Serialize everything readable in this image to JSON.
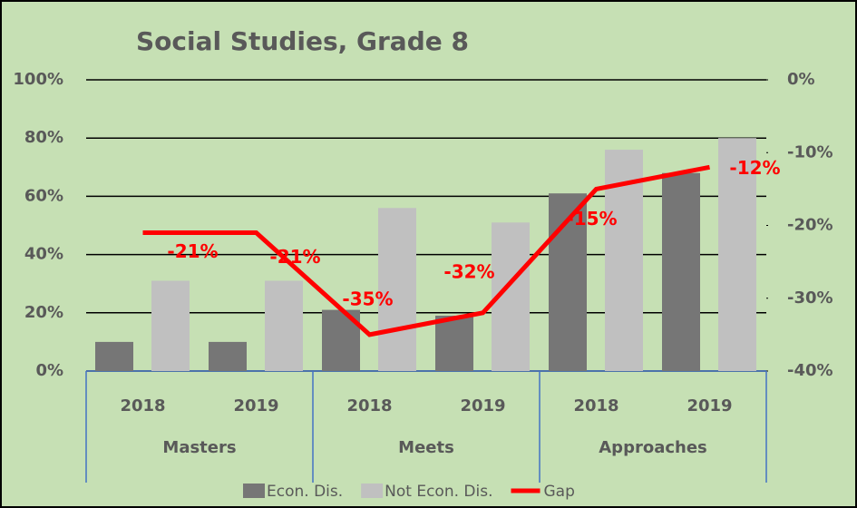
{
  "chart_data": {
    "type": "bar",
    "title": "Social Studies, Grade 8",
    "categories": [
      "2018",
      "2019",
      "2018",
      "2019",
      "2018",
      "2019"
    ],
    "category_groups": [
      "Masters",
      "Meets",
      "Approaches"
    ],
    "series": [
      {
        "name": "Econ. Dis.",
        "color": "#767676",
        "values": [
          10,
          10,
          21,
          19,
          61,
          68
        ]
      },
      {
        "name": "Not Econ. Dis.",
        "color": "#c0c0c0",
        "values": [
          31,
          31,
          56,
          51,
          76,
          80
        ]
      },
      {
        "name": "Gap",
        "type": "line",
        "axis": "y2",
        "color": "#ff0000",
        "values": [
          -21,
          -21,
          -35,
          -32,
          -15,
          -12
        ],
        "value_labels": [
          "-21%",
          "-21%",
          "-35%",
          "-32%",
          "-15%",
          "-12%"
        ]
      }
    ],
    "ylim": [
      0,
      100
    ],
    "yticks": [
      {
        "value": 0,
        "label": "0%"
      },
      {
        "value": 20,
        "label": "20%"
      },
      {
        "value": 40,
        "label": "40%"
      },
      {
        "value": 60,
        "label": "60%"
      },
      {
        "value": 80,
        "label": "80%"
      },
      {
        "value": 100,
        "label": "100%"
      }
    ],
    "y2lim": [
      -40,
      0
    ],
    "y2ticks": [
      {
        "value": -40,
        "label": "-40%"
      },
      {
        "value": -30,
        "label": "-30%"
      },
      {
        "value": -20,
        "label": "-20%"
      },
      {
        "value": -10,
        "label": "-10%"
      },
      {
        "value": 0,
        "label": "0%"
      }
    ],
    "grid": true,
    "legend": "bottom"
  }
}
